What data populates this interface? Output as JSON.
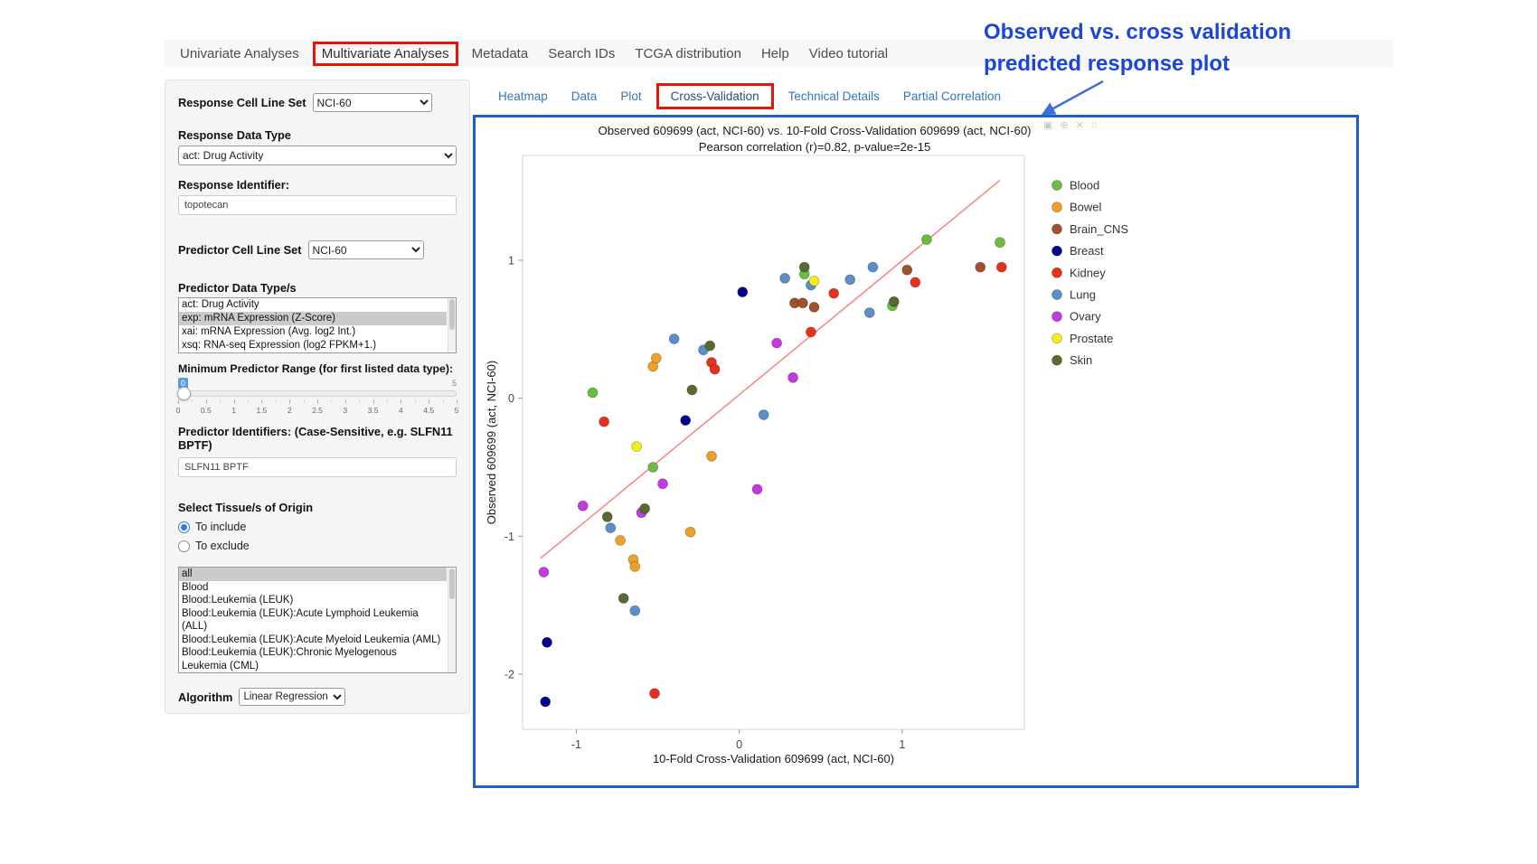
{
  "annotation": {
    "line1": "Observed vs. cross validation",
    "line2": "predicted response plot",
    "color": "#1b46d6"
  },
  "nav": {
    "tabs": [
      {
        "label": "Univariate Analyses",
        "boxed": false
      },
      {
        "label": "Multivariate Analyses",
        "boxed": true
      },
      {
        "label": "Metadata",
        "boxed": false
      },
      {
        "label": "Search IDs",
        "boxed": false
      },
      {
        "label": "TCGA distribution",
        "boxed": false
      },
      {
        "label": "Help",
        "boxed": false
      },
      {
        "label": "Video tutorial",
        "boxed": false
      }
    ]
  },
  "subtabs": [
    {
      "label": "Heatmap",
      "boxed": false
    },
    {
      "label": "Data",
      "boxed": false
    },
    {
      "label": "Plot",
      "boxed": false
    },
    {
      "label": "Cross-Validation",
      "boxed": true
    },
    {
      "label": "Technical Details",
      "boxed": false
    },
    {
      "label": "Partial Correlation",
      "boxed": false
    }
  ],
  "sidebar": {
    "response_cell_line_set": {
      "label": "Response Cell Line Set",
      "value": "NCI-60"
    },
    "response_data_type": {
      "label": "Response Data Type",
      "value": "act: Drug Activity"
    },
    "response_identifier": {
      "label": "Response Identifier:",
      "value": "topotecan"
    },
    "predictor_cell_line_set": {
      "label": "Predictor Cell Line Set",
      "value": "NCI-60"
    },
    "predictor_data_types": {
      "label": "Predictor Data Type/s",
      "options": [
        {
          "label": "act: Drug Activity",
          "selected": false
        },
        {
          "label": "exp: mRNA Expression (Z-Score)",
          "selected": true
        },
        {
          "label": "xai: mRNA Expression (Avg. log2 Int.)",
          "selected": false
        },
        {
          "label": "xsq: RNA-seq Expression (log2 FPKM+1.)",
          "selected": false
        }
      ]
    },
    "min_predictor_range": {
      "label": "Minimum Predictor Range (for first listed data type):",
      "value": "0",
      "max_label": "5",
      "ticks": [
        "0",
        "0.5",
        "1",
        "1.5",
        "2",
        "2.5",
        "3",
        "3.5",
        "4",
        "4.5",
        "5"
      ]
    },
    "predictor_identifiers": {
      "label": "Predictor Identifiers: (Case-Sensitive, e.g. SLFN11 BPTF)",
      "value": "SLFN11 BPTF"
    },
    "tissue_origin": {
      "label": "Select Tissue/s of Origin",
      "radios": [
        {
          "label": "To include",
          "selected": true
        },
        {
          "label": "To exclude",
          "selected": false
        }
      ],
      "options": [
        {
          "label": "all",
          "selected": true
        },
        {
          "label": "Blood",
          "selected": false
        },
        {
          "label": "Blood:Leukemia (LEUK)",
          "selected": false
        },
        {
          "label": "Blood:Leukemia (LEUK):Acute Lymphoid Leukemia (ALL)",
          "selected": false
        },
        {
          "label": "Blood:Leukemia (LEUK):Acute Myeloid Leukemia (AML)",
          "selected": false
        },
        {
          "label": "Blood:Leukemia (LEUK):Chronic Myelogenous Leukemia (CML)",
          "selected": false
        }
      ]
    },
    "algorithm": {
      "label": "Algorithm",
      "value": "Linear Regression"
    }
  },
  "chart_data": {
    "type": "scatter",
    "title": "Observed 609699 (act, NCI-60) vs. 10-Fold Cross-Validation 609699 (act, NCI-60)",
    "subtitle": "Pearson correlation (r)=0.82, p-value=2e-15",
    "xlabel": "10-Fold Cross-Validation 609699 (act, NCI-60)",
    "ylabel": "Observed 609699 (act, NCI-60)",
    "xlim": [
      -1.33,
      1.75
    ],
    "ylim": [
      -2.4,
      1.76
    ],
    "xticks": [
      -1,
      0,
      1
    ],
    "yticks": [
      -2,
      -1,
      0,
      1
    ],
    "grid": false,
    "legend_position": "right",
    "regression_line": {
      "x": [
        -1.22,
        1.6
      ],
      "y": [
        -1.16,
        1.58
      ],
      "color": "#f98a8a"
    },
    "series": [
      {
        "name": "Blood",
        "color": "#6abf40",
        "points": [
          [
            -0.9,
            0.04
          ],
          [
            -0.53,
            -0.5
          ],
          [
            0.4,
            0.9
          ],
          [
            0.94,
            0.67
          ],
          [
            1.15,
            1.15
          ],
          [
            1.6,
            1.13
          ]
        ]
      },
      {
        "name": "Bowel",
        "color": "#f0a028",
        "points": [
          [
            -0.73,
            -1.03
          ],
          [
            -0.65,
            -1.17
          ],
          [
            -0.64,
            -1.22
          ],
          [
            -0.53,
            0.23
          ],
          [
            -0.51,
            0.29
          ],
          [
            -0.3,
            -0.97
          ],
          [
            -0.17,
            -0.42
          ]
        ]
      },
      {
        "name": "Brain_CNS",
        "color": "#a0522d",
        "points": [
          [
            0.34,
            0.69
          ],
          [
            0.39,
            0.69
          ],
          [
            0.46,
            0.66
          ],
          [
            1.03,
            0.93
          ],
          [
            1.48,
            0.95
          ]
        ]
      },
      {
        "name": "Breast",
        "color": "#00008b",
        "points": [
          [
            -1.18,
            -1.77
          ],
          [
            -1.19,
            -2.2
          ],
          [
            -0.33,
            -0.16
          ],
          [
            0.02,
            0.77
          ]
        ]
      },
      {
        "name": "Kidney",
        "color": "#e8301c",
        "points": [
          [
            -0.83,
            -0.17
          ],
          [
            -0.52,
            -2.14
          ],
          [
            -0.17,
            0.26
          ],
          [
            -0.15,
            0.21
          ],
          [
            0.44,
            0.48
          ],
          [
            0.58,
            0.76
          ],
          [
            1.08,
            0.84
          ],
          [
            1.61,
            0.95
          ]
        ]
      },
      {
        "name": "Lung",
        "color": "#5b8fc9",
        "points": [
          [
            -0.79,
            -0.94
          ],
          [
            -0.64,
            -1.54
          ],
          [
            -0.4,
            0.43
          ],
          [
            -0.22,
            0.35
          ],
          [
            0.15,
            -0.12
          ],
          [
            0.28,
            0.87
          ],
          [
            0.44,
            0.82
          ],
          [
            0.68,
            0.86
          ],
          [
            0.8,
            0.62
          ],
          [
            0.82,
            0.95
          ]
        ]
      },
      {
        "name": "Ovary",
        "color": "#c43ae0",
        "points": [
          [
            -1.2,
            -1.26
          ],
          [
            -0.96,
            -0.78
          ],
          [
            -0.6,
            -0.83
          ],
          [
            -0.47,
            -0.62
          ],
          [
            0.11,
            -0.66
          ],
          [
            0.23,
            0.4
          ],
          [
            0.33,
            0.15
          ]
        ]
      },
      {
        "name": "Prostate",
        "color": "#f2ef1d",
        "points": [
          [
            -0.63,
            -0.35
          ],
          [
            0.46,
            0.85
          ]
        ]
      },
      {
        "name": "Skin",
        "color": "#556b2f",
        "points": [
          [
            -0.81,
            -0.86
          ],
          [
            -0.71,
            -1.45
          ],
          [
            -0.58,
            -0.8
          ],
          [
            -0.29,
            0.06
          ],
          [
            -0.18,
            0.38
          ],
          [
            0.4,
            0.95
          ],
          [
            0.95,
            0.7
          ]
        ]
      }
    ],
    "modebar_icons": [
      "camera-icon",
      "zoom-icon",
      "close-icon",
      "home-icon"
    ]
  }
}
